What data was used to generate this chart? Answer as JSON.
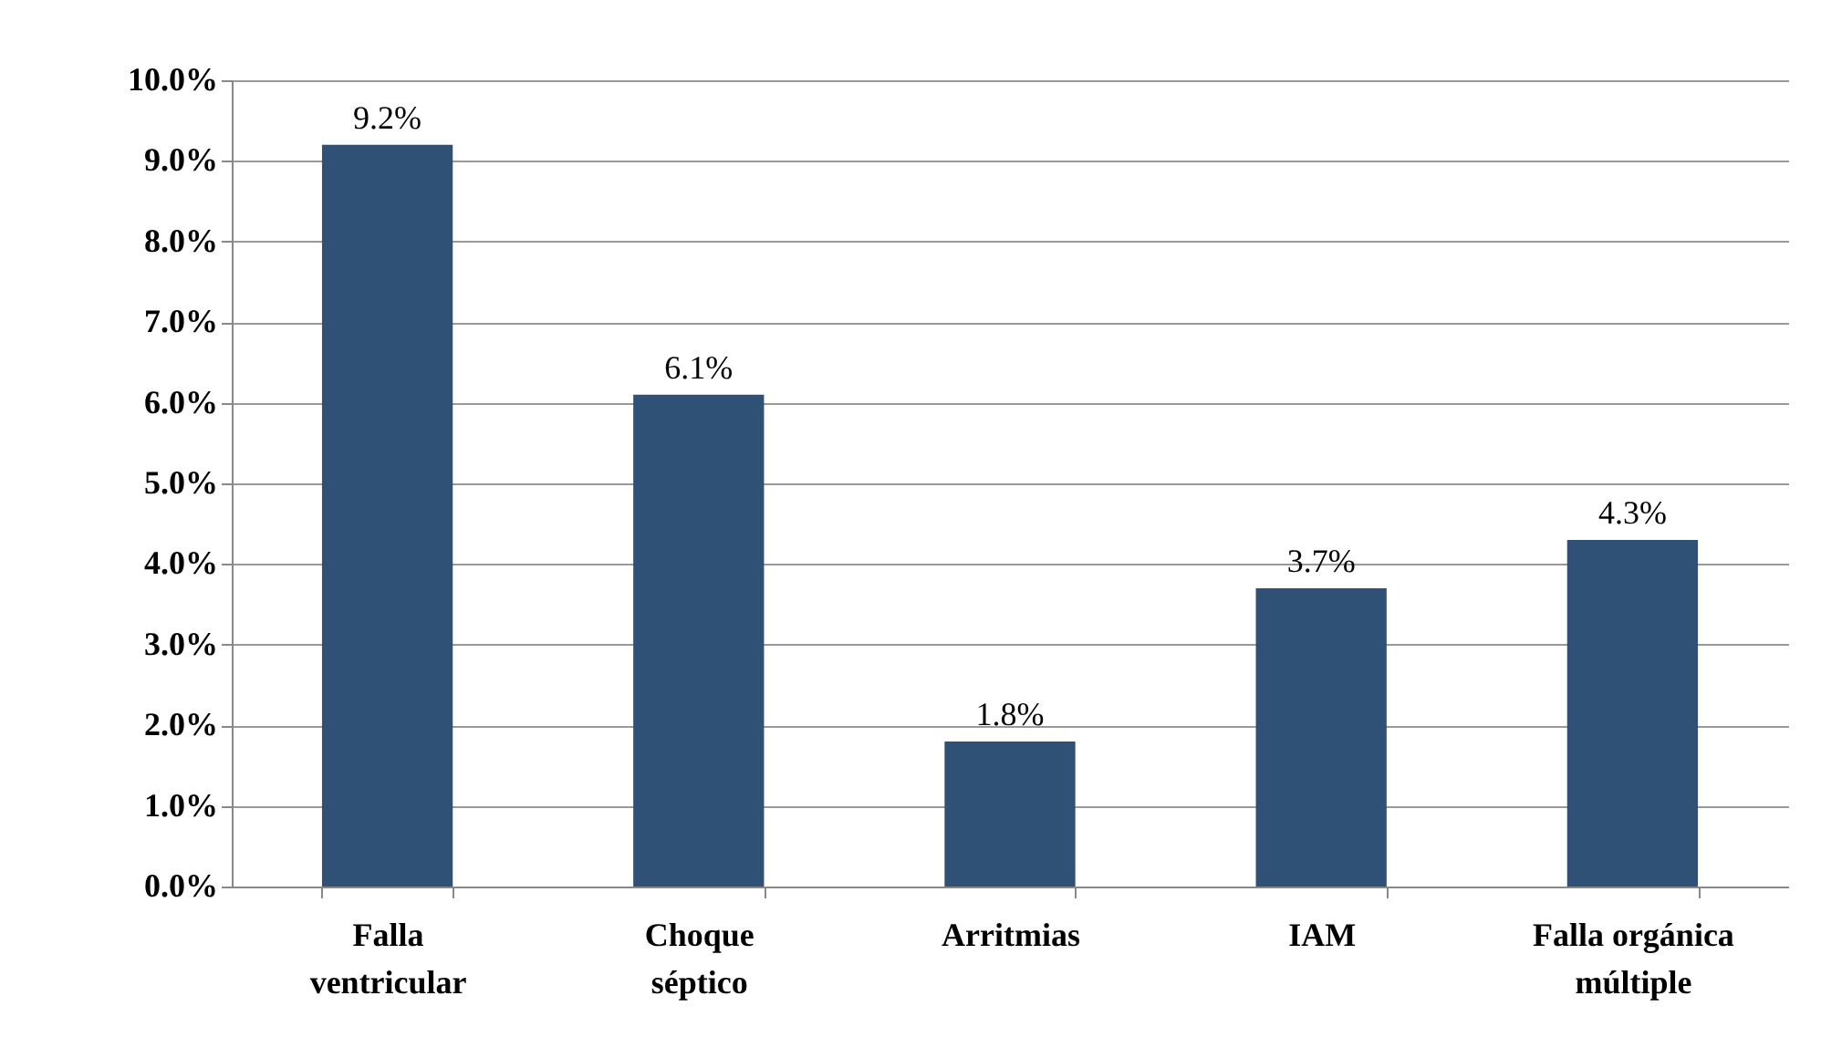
{
  "chart_data": {
    "type": "bar",
    "categories": [
      "Falla ventricular",
      "Choque séptico",
      "Arritmias",
      "IAM",
      "Falla orgánica múltiple"
    ],
    "values": [
      9.2,
      6.1,
      1.8,
      3.7,
      4.3
    ],
    "value_labels": [
      "9.2%",
      "6.1%",
      "1.8%",
      "3.7%",
      "4.3%"
    ],
    "color": "#2f5175",
    "ylim": [
      0,
      10
    ],
    "yticks": [
      {
        "value": 0,
        "label": "0.0%"
      },
      {
        "value": 1,
        "label": "1.0%"
      },
      {
        "value": 2,
        "label": "2.0%"
      },
      {
        "value": 3,
        "label": "3.0%"
      },
      {
        "value": 4,
        "label": "4.0%"
      },
      {
        "value": 5,
        "label": "5.0%"
      },
      {
        "value": 6,
        "label": "6.0%"
      },
      {
        "value": 7,
        "label": "7.0%"
      },
      {
        "value": 8,
        "label": "8.0%"
      },
      {
        "value": 9,
        "label": "9.0%"
      },
      {
        "value": 10,
        "label": "10.0%"
      }
    ],
    "grid": "y"
  }
}
